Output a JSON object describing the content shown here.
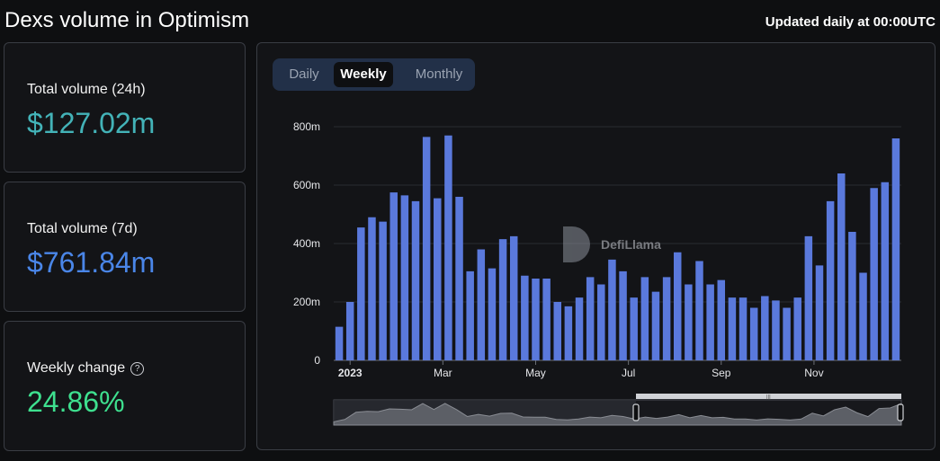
{
  "header": {
    "title": "Dexs volume in Optimism",
    "update_note": "Updated daily at 00:00UTC"
  },
  "stats": {
    "volume_24h_label": "Total volume (24h)",
    "volume_24h_value": "$127.02m",
    "volume_7d_label": "Total volume (7d)",
    "volume_7d_value": "$761.84m",
    "weekly_change_label": "Weekly change",
    "weekly_change_value": "24.86%",
    "help_icon": "?"
  },
  "tabs": {
    "daily": "Daily",
    "weekly": "Weekly",
    "monthly": "Monthly",
    "active": "Weekly"
  },
  "watermark": {
    "text": "DefiLlama"
  },
  "colors": {
    "bar": "#5a79dc",
    "value_24h": "#43b3b8",
    "value_7d": "#4a86e8",
    "value_change": "#3ee08f"
  },
  "chart_data": {
    "type": "bar",
    "title": "",
    "xlabel": "",
    "ylabel": "",
    "ylim": [
      0,
      800
    ],
    "y_ticks": [
      {
        "value": 0,
        "label": "0"
      },
      {
        "value": 200,
        "label": "200m"
      },
      {
        "value": 400,
        "label": "400m"
      },
      {
        "value": 600,
        "label": "600m"
      },
      {
        "value": 800,
        "label": "800m"
      }
    ],
    "x_ticks": [
      {
        "index": 1,
        "label": "2023",
        "bold": true
      },
      {
        "index": 9.5,
        "label": "Mar",
        "bold": false
      },
      {
        "index": 18,
        "label": "May",
        "bold": false
      },
      {
        "index": 26.5,
        "label": "Jul",
        "bold": false
      },
      {
        "index": 35,
        "label": "Sep",
        "bold": false
      },
      {
        "index": 43.5,
        "label": "Nov",
        "bold": false
      }
    ],
    "unit": "m",
    "values": [
      115,
      200,
      455,
      490,
      475,
      575,
      565,
      545,
      765,
      555,
      770,
      560,
      305,
      380,
      315,
      415,
      425,
      290,
      280,
      280,
      200,
      185,
      215,
      285,
      260,
      345,
      305,
      215,
      285,
      235,
      285,
      370,
      260,
      340,
      260,
      275,
      215,
      215,
      180,
      220,
      205,
      180,
      215,
      425,
      325,
      545,
      640,
      440,
      300,
      590,
      610,
      760
    ]
  }
}
